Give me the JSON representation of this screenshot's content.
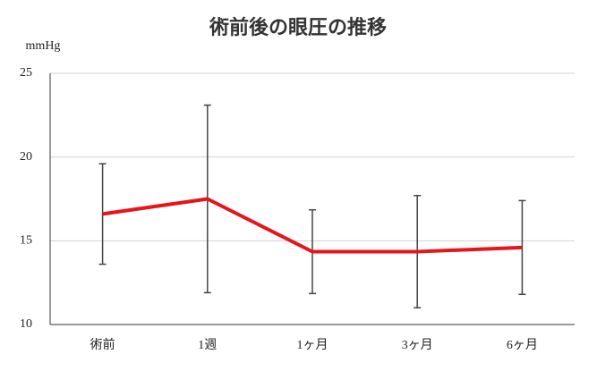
{
  "chart_data": {
    "type": "line",
    "title": "術前後の眼圧の推移",
    "y_label": "mmHg",
    "categories": [
      "術前",
      "1週",
      "1ヶ月",
      "3ヶ月",
      "6ヶ月"
    ],
    "series": [
      {
        "name": "眼圧",
        "color": "#e8141b",
        "values": [
          16.6,
          17.5,
          14.35,
          14.35,
          14.6
        ],
        "errors": [
          3.0,
          5.6,
          2.5,
          3.35,
          2.8
        ]
      }
    ],
    "ylim": [
      10,
      25
    ],
    "yticks": [
      10,
      15,
      20,
      25
    ],
    "grid": true
  }
}
